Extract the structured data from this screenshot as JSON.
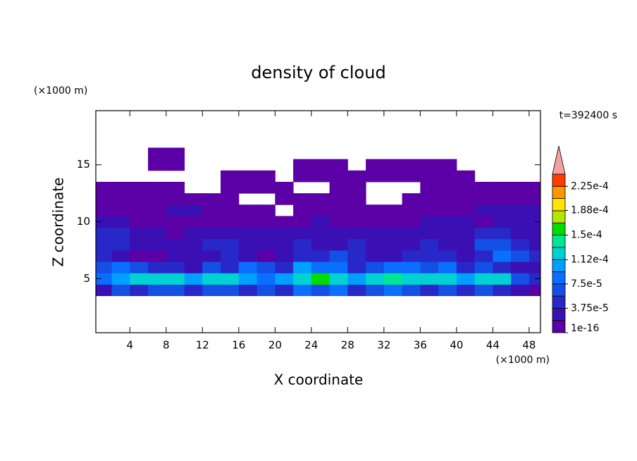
{
  "chart_data": {
    "type": "contour",
    "title": "density of cloud",
    "x_label": "X coordinate",
    "y_label": "Z coordinate",
    "x_unit": "(×1000 m)",
    "y_unit": "(×1000 m)",
    "time_label": "t=392400 s",
    "xlim": [
      0.25,
      49.25
    ],
    "ylim": [
      0.25,
      19.75
    ],
    "xticks": [
      4,
      8,
      12,
      16,
      20,
      24,
      28,
      32,
      36,
      40,
      44,
      48
    ],
    "yticks": [
      5,
      10,
      15
    ],
    "x": [
      1,
      3,
      5,
      7,
      9,
      11,
      13,
      15,
      17,
      19,
      21,
      23,
      25,
      27,
      29,
      31,
      33,
      35,
      37,
      39,
      41,
      43,
      45,
      47,
      49
    ],
    "z": [
      4,
      5,
      6,
      7,
      8,
      9,
      10,
      11,
      12,
      13,
      14,
      15,
      16,
      17
    ],
    "values": [
      [
        2.5e-05,
        6.5e-05,
        4.5e-05,
        6.5e-05,
        6.5e-05,
        4.5e-05,
        6.5e-05,
        6.5e-05,
        4.5e-05,
        6.5e-05,
        4.5e-05,
        8.5e-05,
        6.5e-05,
        8.5e-05,
        4.5e-05,
        6.5e-05,
        8.5e-05,
        6.5e-05,
        4.5e-05,
        6.5e-05,
        4.5e-05,
        6.5e-05,
        4.5e-05,
        2.5e-05,
        1e-05
      ],
      [
        8.5e-05,
        0.0001,
        0.00012,
        0.00012,
        0.00012,
        0.0001,
        0.00012,
        0.00012,
        0.0001,
        8.5e-05,
        0.0001,
        0.00012,
        0.00016,
        0.00012,
        0.0001,
        0.00012,
        0.00014,
        0.00012,
        0.00012,
        0.00012,
        0.0001,
        0.00012,
        0.00012,
        6.5e-05,
        4.5e-05
      ],
      [
        6.5e-05,
        8.5e-05,
        6.5e-05,
        4.5e-05,
        4.5e-05,
        2.5e-05,
        6.5e-05,
        4.5e-05,
        8.5e-05,
        6.5e-05,
        4.5e-05,
        0.0001,
        8.5e-05,
        8.5e-05,
        4.5e-05,
        6.5e-05,
        8.5e-05,
        8.5e-05,
        6.5e-05,
        8.5e-05,
        4.5e-05,
        6.5e-05,
        4.5e-05,
        2.5e-05,
        2.5e-05
      ],
      [
        4.5e-05,
        2.5e-05,
        1e-05,
        1e-05,
        2.5e-05,
        2.5e-05,
        2.5e-05,
        4.5e-05,
        2.5e-05,
        1e-05,
        2.5e-05,
        4.5e-05,
        4.5e-05,
        6.5e-05,
        4.5e-05,
        2.5e-05,
        2.5e-05,
        4.5e-05,
        4.5e-05,
        4.5e-05,
        2.5e-05,
        4.5e-05,
        8.5e-05,
        6.5e-05,
        4.5e-05
      ],
      [
        4.5e-05,
        4.5e-05,
        2.5e-05,
        2.5e-05,
        2.5e-05,
        2.5e-05,
        4.5e-05,
        4.5e-05,
        2.5e-05,
        2.5e-05,
        2.5e-05,
        4.5e-05,
        2.5e-05,
        2.5e-05,
        4.5e-05,
        2.5e-05,
        2.5e-05,
        2.5e-05,
        4.5e-05,
        2.5e-05,
        2.5e-05,
        6.5e-05,
        6.5e-05,
        4.5e-05,
        2.5e-05
      ],
      [
        4.5e-05,
        4.5e-05,
        2.5e-05,
        2.5e-05,
        1e-05,
        2.5e-05,
        2.5e-05,
        2.5e-05,
        2.5e-05,
        2.5e-05,
        2.5e-05,
        2.5e-05,
        2.5e-05,
        2.5e-05,
        2.5e-05,
        2.5e-05,
        2.5e-05,
        2.5e-05,
        2.5e-05,
        2.5e-05,
        2.5e-05,
        4.5e-05,
        4.5e-05,
        2.5e-05,
        2.5e-05
      ],
      [
        2.5e-05,
        2.5e-05,
        1e-05,
        1e-05,
        1e-05,
        1e-05,
        1e-05,
        1e-05,
        1e-05,
        1e-05,
        1e-05,
        1e-05,
        2.5e-05,
        1e-05,
        1e-05,
        1e-05,
        1e-05,
        1e-05,
        2.5e-05,
        2.5e-05,
        2.5e-05,
        1e-05,
        2.5e-05,
        2.5e-05,
        2.5e-05
      ],
      [
        1e-05,
        1e-05,
        1e-05,
        1e-05,
        2.5e-05,
        2.5e-05,
        1e-05,
        1e-05,
        1e-05,
        1e-05,
        null,
        1e-05,
        1e-05,
        1e-05,
        1e-05,
        1e-05,
        1e-05,
        1e-05,
        1e-05,
        1e-05,
        1e-05,
        2.5e-05,
        2.5e-05,
        2.5e-05,
        2.5e-05
      ],
      [
        1e-05,
        1e-05,
        1e-05,
        1e-05,
        1e-05,
        1e-05,
        1e-05,
        1e-05,
        null,
        null,
        1e-05,
        1e-05,
        1e-05,
        1e-05,
        1e-05,
        null,
        null,
        1e-05,
        1e-05,
        1e-05,
        1e-05,
        1e-05,
        1e-05,
        1e-05,
        1e-05
      ],
      [
        1e-05,
        1e-05,
        1e-05,
        1e-05,
        1e-05,
        null,
        null,
        1e-05,
        1e-05,
        1e-05,
        1e-05,
        null,
        null,
        1e-05,
        1e-05,
        null,
        null,
        null,
        1e-05,
        1e-05,
        1e-05,
        1e-05,
        1e-05,
        1e-05,
        1e-05
      ],
      [
        null,
        null,
        null,
        null,
        null,
        null,
        null,
        1e-05,
        1e-05,
        1e-05,
        null,
        1e-05,
        1e-05,
        1e-05,
        1e-05,
        1e-05,
        1e-05,
        1e-05,
        1e-05,
        1e-05,
        1e-05,
        null,
        null,
        null,
        null
      ],
      [
        null,
        null,
        null,
        1e-05,
        1e-05,
        null,
        null,
        null,
        null,
        null,
        null,
        1e-05,
        1e-05,
        1e-05,
        null,
        1e-05,
        1e-05,
        1e-05,
        1e-05,
        1e-05,
        null,
        null,
        null,
        null,
        null
      ],
      [
        null,
        null,
        null,
        1e-05,
        1e-05,
        null,
        null,
        null,
        null,
        null,
        null,
        null,
        null,
        null,
        null,
        null,
        null,
        null,
        null,
        null,
        null,
        null,
        null,
        null,
        null
      ],
      [
        null,
        null,
        null,
        null,
        null,
        null,
        null,
        null,
        null,
        null,
        null,
        null,
        null,
        null,
        null,
        null,
        null,
        null,
        null,
        null,
        null,
        null,
        null,
        null,
        null
      ]
    ],
    "levels": [
      1e-16,
      1.875e-05,
      3.75e-05,
      5.625e-05,
      7.5e-05,
      9.375e-05,
      0.0001125,
      0.00013125,
      0.00015,
      0.00016875,
      0.0001875,
      0.00020625,
      0.000225,
      0.00024375
    ],
    "colors": [
      "#5a00a6",
      "#3a10b4",
      "#2828c8",
      "#1450e6",
      "#0a6eff",
      "#00a0ff",
      "#00d2d2",
      "#00e696",
      "#00dc00",
      "#b4e600",
      "#ffe600",
      "#ff9600",
      "#ff3c00"
    ],
    "overflow_color": "#f4a0a0",
    "colorbar_ticks": [
      {
        "value": 1e-16,
        "label": "1e-16"
      },
      {
        "value": 3.75e-05,
        "label": "3.75e-5"
      },
      {
        "value": 7.5e-05,
        "label": "7.5e-5"
      },
      {
        "value": 0.000112,
        "label": "1.12e-4"
      },
      {
        "value": 0.00015,
        "label": "1.5e-4"
      },
      {
        "value": 0.000188,
        "label": "1.88e-4"
      },
      {
        "value": 0.000225,
        "label": "2.25e-4"
      }
    ]
  }
}
